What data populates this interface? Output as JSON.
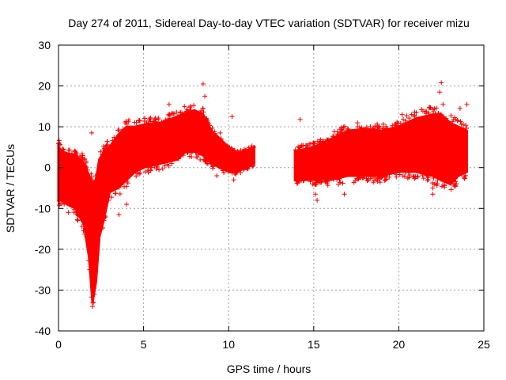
{
  "chart_data": {
    "type": "scatter",
    "title": "Day 274 of 2011, Sidereal Day-to-day VTEC variation (SDTVAR) for receiver mizu",
    "xlabel": "GPS time / hours",
    "ylabel": "SDTVAR / TECUs",
    "xlim": [
      0,
      25
    ],
    "ylim": [
      -40,
      30
    ],
    "xticks": [
      0,
      5,
      10,
      15,
      20,
      25
    ],
    "yticks": [
      -40,
      -30,
      -20,
      -10,
      0,
      10,
      20,
      30
    ],
    "grid": true,
    "marker": "+",
    "color": "#ff0000",
    "series": [
      {
        "name": "SDTVAR",
        "envelope": [
          {
            "x": 0.0,
            "lo": -8,
            "hi": 5
          },
          {
            "x": 0.2,
            "lo": -8,
            "hi": 4
          },
          {
            "x": 0.5,
            "lo": -9,
            "hi": 3.5
          },
          {
            "x": 1.0,
            "lo": -10,
            "hi": 3
          },
          {
            "x": 1.5,
            "lo": -14,
            "hi": 1
          },
          {
            "x": 1.8,
            "lo": -22,
            "hi": -2
          },
          {
            "x": 2.0,
            "lo": -33,
            "hi": -4
          },
          {
            "x": 2.2,
            "lo": -28,
            "hi": -3
          },
          {
            "x": 2.4,
            "lo": -17,
            "hi": 2
          },
          {
            "x": 2.7,
            "lo": -12,
            "hi": 4
          },
          {
            "x": 3.0,
            "lo": -6,
            "hi": 5
          },
          {
            "x": 3.5,
            "lo": -5,
            "hi": 8
          },
          {
            "x": 4.0,
            "lo": -3,
            "hi": 10
          },
          {
            "x": 4.5,
            "lo": -1,
            "hi": 10
          },
          {
            "x": 5.0,
            "lo": 0,
            "hi": 10.5
          },
          {
            "x": 6.0,
            "lo": 1,
            "hi": 11
          },
          {
            "x": 7.0,
            "lo": 2,
            "hi": 12.5
          },
          {
            "x": 7.5,
            "lo": 4,
            "hi": 13.5
          },
          {
            "x": 8.0,
            "lo": 4,
            "hi": 14
          },
          {
            "x": 8.5,
            "lo": 3,
            "hi": 13
          },
          {
            "x": 9.0,
            "lo": 1,
            "hi": 9
          },
          {
            "x": 9.5,
            "lo": 0,
            "hi": 7
          },
          {
            "x": 10.0,
            "lo": -1,
            "hi": 5
          },
          {
            "x": 10.5,
            "lo": -1,
            "hi": 3.5
          },
          {
            "x": 11.0,
            "lo": 0,
            "hi": 4
          },
          {
            "x": 11.5,
            "lo": 1,
            "hi": 5
          }
        ],
        "envelope2": [
          {
            "x": 13.9,
            "lo": -3,
            "hi": 4
          },
          {
            "x": 15.0,
            "lo": -3,
            "hi": 5
          },
          {
            "x": 16.0,
            "lo": -3,
            "hi": 7
          },
          {
            "x": 17.0,
            "lo": -2,
            "hi": 9
          },
          {
            "x": 18.0,
            "lo": -2,
            "hi": 9.5
          },
          {
            "x": 19.0,
            "lo": -2,
            "hi": 9
          },
          {
            "x": 20.0,
            "lo": -1,
            "hi": 10
          },
          {
            "x": 21.0,
            "lo": -1,
            "hi": 12
          },
          {
            "x": 22.0,
            "lo": -2,
            "hi": 13
          },
          {
            "x": 22.5,
            "lo": -3,
            "hi": 13
          },
          {
            "x": 23.0,
            "lo": -4,
            "hi": 11
          },
          {
            "x": 23.5,
            "lo": -2,
            "hi": 10
          },
          {
            "x": 24.0,
            "lo": -1,
            "hi": 9
          }
        ],
        "outliers": [
          {
            "x": 2.0,
            "y": -34
          },
          {
            "x": 2.05,
            "y": -33
          },
          {
            "x": 2.1,
            "y": -31
          },
          {
            "x": 1.95,
            "y": 8.5
          },
          {
            "x": 3.55,
            "y": -11.5
          },
          {
            "x": 4.0,
            "y": -9
          },
          {
            "x": 6.5,
            "y": 15.5
          },
          {
            "x": 7.4,
            "y": 15
          },
          {
            "x": 8.5,
            "y": 20.5
          },
          {
            "x": 8.6,
            "y": 17.5
          },
          {
            "x": 9.3,
            "y": -2
          },
          {
            "x": 9.5,
            "y": 8.5
          },
          {
            "x": 10.2,
            "y": 12.5
          },
          {
            "x": 10.3,
            "y": -3
          },
          {
            "x": 14.2,
            "y": 11.8
          },
          {
            "x": 15.1,
            "y": -6.5
          },
          {
            "x": 15.2,
            "y": -8
          },
          {
            "x": 16.8,
            "y": -6.5
          },
          {
            "x": 20.2,
            "y": 13
          },
          {
            "x": 22.0,
            "y": -5
          },
          {
            "x": 22.4,
            "y": 18.5
          },
          {
            "x": 22.5,
            "y": 20.8
          },
          {
            "x": 22.6,
            "y": 15.5
          },
          {
            "x": 23.6,
            "y": 14.5
          },
          {
            "x": 24.0,
            "y": 15.5
          },
          {
            "x": 22.0,
            "y": -6.5
          }
        ]
      }
    ]
  }
}
